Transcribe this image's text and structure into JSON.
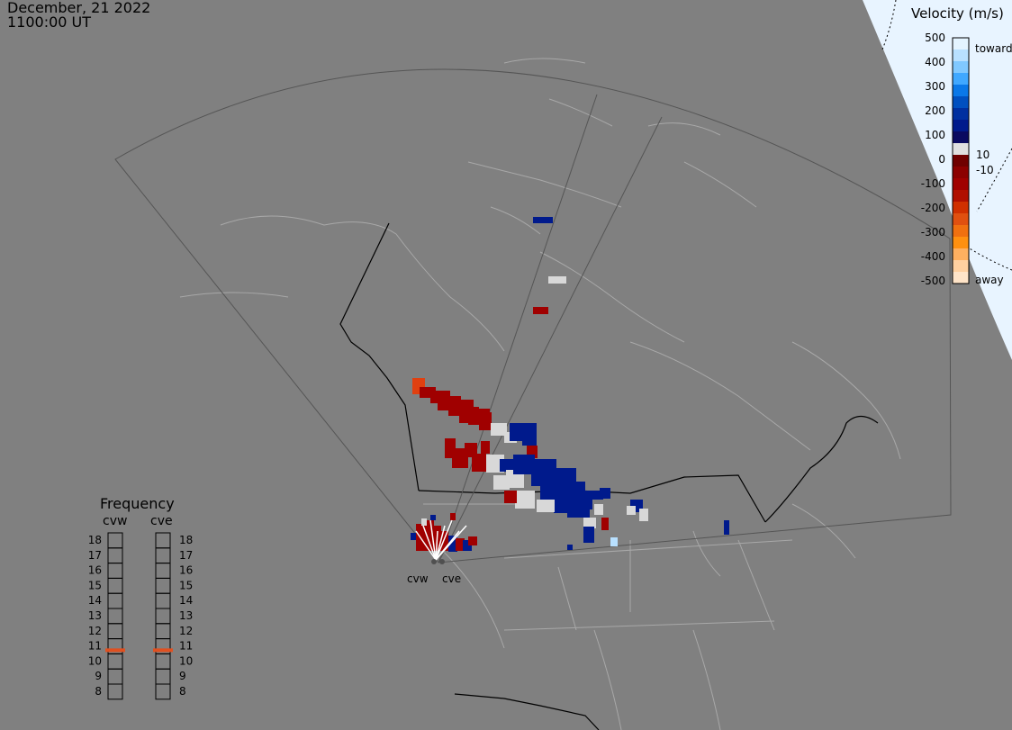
{
  "header": {
    "date": "December, 21 2022",
    "time": "1100:00 UT"
  },
  "velocity_scale": {
    "title": "Velocity (m/s)",
    "labels": [
      "500",
      "400",
      "300",
      "200",
      "100",
      "0",
      "-100",
      "-200",
      "-300",
      "-400",
      "-500"
    ],
    "positive_label": "toward",
    "negative_label": "away",
    "threshold_pos": "10",
    "threshold_neg": "-10"
  },
  "frequency": {
    "title": "Frequency",
    "radars": [
      "cvw",
      "cve"
    ],
    "ticks": [
      "18",
      "17",
      "16",
      "15",
      "14",
      "13",
      "12",
      "11",
      "10",
      "9",
      "8"
    ],
    "current_mhz": [
      10.8,
      10.8
    ]
  },
  "radar_labels": {
    "west": "cvw",
    "east": "cve"
  },
  "colors": {
    "background": "#808080",
    "toward_strong": "#001a8c",
    "away_strong": "#a00000",
    "ground_scatter": "#d8d8d8",
    "away_fast": "#e04010",
    "daylight_region": "#e8f4ff",
    "frequency_marker": "#e05020"
  }
}
